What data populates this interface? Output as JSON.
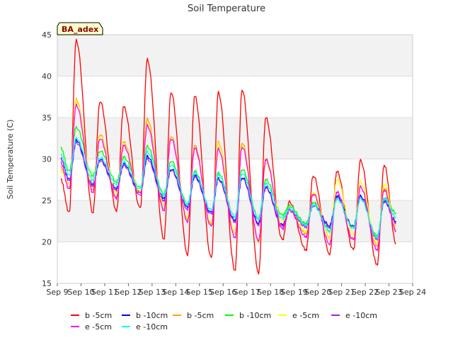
{
  "chart_data": {
    "type": "line",
    "title": "Soil Temperature",
    "xlabel": "",
    "ylabel": "Soil Temperature (C)",
    "badge": "BA_adex",
    "xlim": [
      9,
      24
    ],
    "ylim": [
      15,
      45
    ],
    "x_tick_labels": [
      "Sep 9",
      "Sep 10",
      "Sep 11",
      "Sep 12",
      "Sep 13",
      "Sep 14",
      "Sep 15",
      "Sep 16",
      "Sep 17",
      "Sep 18",
      "Sep 19",
      "Sep 20",
      "Sep 21",
      "Sep 22",
      "Sep 23",
      "Sep 24"
    ],
    "x_ticks": [
      9,
      10,
      11,
      12,
      13,
      14,
      15,
      16,
      17,
      18,
      19,
      20,
      21,
      22,
      23,
      24
    ],
    "y_ticks": [
      15,
      20,
      25,
      30,
      35,
      40,
      45
    ],
    "grid": true,
    "legend_position": "bottom",
    "x_day_points": [
      9.15,
      9.5,
      9.8,
      10.5,
      10.8,
      11.5,
      11.8,
      12.5,
      12.8,
      13.5,
      13.8,
      14.5,
      14.8,
      15.5,
      15.8,
      16.5,
      16.8,
      17.5,
      17.8,
      18.5,
      18.8,
      19.5,
      19.8,
      20.5,
      20.8,
      21.5,
      21.8,
      22.5,
      22.8,
      23.3
    ],
    "series": [
      {
        "name": "b -5cm",
        "color": "#ff0000",
        "values": [
          27.5,
          23.5,
          44.3,
          23.5,
          37.0,
          23.8,
          36.3,
          24.0,
          42.0,
          20.3,
          38.1,
          18.5,
          37.6,
          18.0,
          38.0,
          16.5,
          38.4,
          16.3,
          35.0,
          20.2,
          24.8,
          19.0,
          28.0,
          18.6,
          28.5,
          19.0,
          29.8,
          17.2,
          29.3,
          19.8
        ]
      },
      {
        "name": "b -10cm",
        "color": "#0000ff",
        "values": [
          30.0,
          27.5,
          32.3,
          27.0,
          30.0,
          26.5,
          29.4,
          26.0,
          30.3,
          25.3,
          28.8,
          24.3,
          28.0,
          23.5,
          27.6,
          22.6,
          27.8,
          22.3,
          26.6,
          22.0,
          24.0,
          22.0,
          24.5,
          22.0,
          25.5,
          21.8,
          25.5,
          20.5,
          25.0,
          22.5
        ]
      },
      {
        "name": "b -5cm",
        "color": "#ffa500",
        "values": [
          29.0,
          26.5,
          37.2,
          26.3,
          33.0,
          25.5,
          32.0,
          25.8,
          34.8,
          24.0,
          32.8,
          22.8,
          31.6,
          22.0,
          32.0,
          21.0,
          32.0,
          20.2,
          30.0,
          21.8,
          24.0,
          21.0,
          25.9,
          20.6,
          26.0,
          20.3,
          26.6,
          19.5,
          26.5,
          21.5
        ]
      },
      {
        "name": "b -10cm",
        "color": "#00ff00",
        "values": [
          31.3,
          28.5,
          33.8,
          28.0,
          31.0,
          27.3,
          30.2,
          26.5,
          31.5,
          25.8,
          29.8,
          24.6,
          28.5,
          23.8,
          28.3,
          23.0,
          28.8,
          22.9,
          27.5,
          23.2,
          24.3,
          22.2,
          24.8,
          21.4,
          25.3,
          21.7,
          25.3,
          20.7,
          25.3,
          23.5
        ]
      },
      {
        "name": "e -5cm",
        "color": "#ffff00",
        "values": [
          28.5,
          27.0,
          37.0,
          26.6,
          32.8,
          26.0,
          31.8,
          26.0,
          34.2,
          24.4,
          32.5,
          23.0,
          31.2,
          22.2,
          31.8,
          21.0,
          31.7,
          20.0,
          29.5,
          22.5,
          24.0,
          21.2,
          26.0,
          20.5,
          27.5,
          20.8,
          27.2,
          19.8,
          27.0,
          22.0
        ]
      },
      {
        "name": "e -10cm",
        "color": "#a020f0",
        "values": [
          30.0,
          27.3,
          32.0,
          26.8,
          29.8,
          26.3,
          29.2,
          25.8,
          30.0,
          25.0,
          28.7,
          24.0,
          27.8,
          23.3,
          27.5,
          22.4,
          27.7,
          22.1,
          26.5,
          21.8,
          23.8,
          21.8,
          24.4,
          21.8,
          25.3,
          21.6,
          25.3,
          20.3,
          24.9,
          22.3
        ]
      },
      {
        "name": "e -5cm",
        "color": "#ff00ff",
        "values": [
          29.5,
          26.3,
          36.5,
          26.0,
          32.5,
          25.3,
          31.6,
          25.5,
          34.0,
          23.8,
          32.5,
          22.5,
          31.3,
          21.8,
          31.2,
          20.5,
          31.5,
          20.2,
          29.9,
          21.5,
          23.8,
          20.6,
          25.8,
          19.8,
          26.0,
          20.2,
          26.6,
          19.0,
          26.3,
          21.3
        ]
      },
      {
        "name": "e -10cm",
        "color": "#00ffff",
        "values": [
          30.5,
          28.0,
          32.5,
          27.5,
          30.2,
          27.0,
          29.6,
          26.3,
          30.8,
          25.6,
          29.3,
          24.5,
          28.3,
          23.8,
          28.0,
          23.0,
          28.3,
          22.8,
          27.0,
          22.8,
          24.0,
          22.0,
          24.5,
          21.3,
          25.2,
          21.6,
          25.2,
          20.5,
          25.2,
          23.0
        ]
      }
    ]
  }
}
